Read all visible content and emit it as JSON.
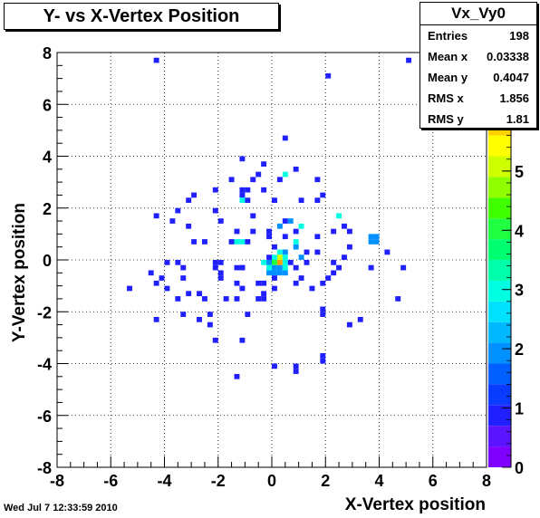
{
  "title": "Y- vs X-Vertex Position",
  "stats": {
    "name": "Vx_Vy0",
    "rows": [
      {
        "label": "Entries",
        "value": "198"
      },
      {
        "label": "Mean x",
        "value": "0.03338"
      },
      {
        "label": "Mean y",
        "value": "0.4047"
      },
      {
        "label": "RMS x",
        "value": "1.856"
      },
      {
        "label": "RMS y",
        "value": "1.81"
      }
    ]
  },
  "footer": {
    "timestamp": "Wed Jul  7 12:33:59 2010"
  },
  "chart_data": {
    "type": "heatmap",
    "title": "Y- vs X-Vertex Position",
    "xlabel": "X-Vertex position",
    "ylabel": "Y-Vertex position",
    "xlim": [
      -8,
      8
    ],
    "ylim": [
      -8,
      8
    ],
    "xticks": [
      -8,
      -6,
      -4,
      -2,
      0,
      2,
      4,
      6,
      8
    ],
    "yticks": [
      -8,
      -6,
      -4,
      -2,
      0,
      2,
      4,
      6,
      8
    ],
    "grid": true,
    "bin_width": 0.2,
    "zlim": [
      0,
      7
    ],
    "zticks": [
      0,
      1,
      2,
      3,
      4,
      5,
      6
    ],
    "colors": [
      "#7f00ff",
      "#5a14ff",
      "#2020ff",
      "#0a3cff",
      "#0060ff",
      "#0090ff",
      "#00b8ff",
      "#00e0ff",
      "#00ffe0",
      "#00ffaa",
      "#00ff70",
      "#20ff40",
      "#40ff00",
      "#90ff00",
      "#d0ff00",
      "#ffff00",
      "#ffd000",
      "#ffa000",
      "#ff7000",
      "#ff3000"
    ],
    "cells": [
      {
        "x": -4.3,
        "y": 7.7,
        "v": 1
      },
      {
        "x": 2.1,
        "y": 7.1,
        "v": 1
      },
      {
        "x": 5.1,
        "y": 7.7,
        "v": 1
      },
      {
        "x": 0.5,
        "y": 4.7,
        "v": 1
      },
      {
        "x": -1.1,
        "y": 3.9,
        "v": 1
      },
      {
        "x": -0.3,
        "y": 3.7,
        "v": 1
      },
      {
        "x": 0.9,
        "y": 3.5,
        "v": 1
      },
      {
        "x": -0.5,
        "y": 3.3,
        "v": 1
      },
      {
        "x": 0.5,
        "y": 3.3,
        "v": 3
      },
      {
        "x": -1.5,
        "y": 3.1,
        "v": 1
      },
      {
        "x": -0.7,
        "y": 3.1,
        "v": 1
      },
      {
        "x": 0.3,
        "y": 3.1,
        "v": 1
      },
      {
        "x": 1.7,
        "y": 3.1,
        "v": 1
      },
      {
        "x": -2.1,
        "y": 2.7,
        "v": 1
      },
      {
        "x": -1.1,
        "y": 2.7,
        "v": 1
      },
      {
        "x": -0.9,
        "y": 2.7,
        "v": 1
      },
      {
        "x": -0.3,
        "y": 2.7,
        "v": 1
      },
      {
        "x": -2.9,
        "y": 2.5,
        "v": 1
      },
      {
        "x": -1.1,
        "y": 2.5,
        "v": 1
      },
      {
        "x": 1.9,
        "y": 2.5,
        "v": 1
      },
      {
        "x": -3.1,
        "y": 2.3,
        "v": 1
      },
      {
        "x": -1.1,
        "y": 2.3,
        "v": 3
      },
      {
        "x": -0.9,
        "y": 2.3,
        "v": 1
      },
      {
        "x": 0.1,
        "y": 2.3,
        "v": 1
      },
      {
        "x": 1.1,
        "y": 2.3,
        "v": 1
      },
      {
        "x": 1.7,
        "y": 2.3,
        "v": 1
      },
      {
        "x": -3.5,
        "y": 1.9,
        "v": 1
      },
      {
        "x": -2.1,
        "y": 1.9,
        "v": 1
      },
      {
        "x": -0.7,
        "y": 1.7,
        "v": 1
      },
      {
        "x": 2.5,
        "y": 1.7,
        "v": 3
      },
      {
        "x": -3.7,
        "y": 1.5,
        "v": 1
      },
      {
        "x": -4.3,
        "y": 1.7,
        "v": 1
      },
      {
        "x": -1.9,
        "y": 1.5,
        "v": 1
      },
      {
        "x": 0.3,
        "y": 1.3,
        "v": 2
      },
      {
        "x": 0.5,
        "y": 1.5,
        "v": 1
      },
      {
        "x": 0.7,
        "y": 1.5,
        "v": 2
      },
      {
        "x": 1.1,
        "y": 1.3,
        "v": 3
      },
      {
        "x": 2.7,
        "y": 1.3,
        "v": 1
      },
      {
        "x": -3.1,
        "y": 1.3,
        "v": 1
      },
      {
        "x": -0.1,
        "y": 1.1,
        "v": 1
      },
      {
        "x": 0.9,
        "y": 1.1,
        "v": 1
      },
      {
        "x": 2.3,
        "y": 1.1,
        "v": 1
      },
      {
        "x": -1.3,
        "y": 1.1,
        "v": 1
      },
      {
        "x": -0.7,
        "y": 1.1,
        "v": 1
      },
      {
        "x": 2.9,
        "y": 1.1,
        "v": 1
      },
      {
        "x": -0.1,
        "y": 0.9,
        "v": 1
      },
      {
        "x": 0.5,
        "y": 0.9,
        "v": 1
      },
      {
        "x": 1.7,
        "y": 0.9,
        "v": 1
      },
      {
        "x": -1.5,
        "y": 0.7,
        "v": 1
      },
      {
        "x": -1.3,
        "y": 0.7,
        "v": 3
      },
      {
        "x": -1.1,
        "y": 0.7,
        "v": 3
      },
      {
        "x": -0.9,
        "y": 0.7,
        "v": 1
      },
      {
        "x": -2.9,
        "y": 0.7,
        "v": 1
      },
      {
        "x": -2.5,
        "y": 0.7,
        "v": 1
      },
      {
        "x": 0.9,
        "y": 0.7,
        "v": 3
      },
      {
        "x": 3.7,
        "y": 0.9,
        "v": 2
      },
      {
        "x": 3.9,
        "y": 0.9,
        "v": 2
      },
      {
        "x": 3.7,
        "y": 0.7,
        "v": 2
      },
      {
        "x": 3.9,
        "y": 0.7,
        "v": 2
      },
      {
        "x": 2.9,
        "y": 0.5,
        "v": 1
      },
      {
        "x": 0.1,
        "y": 0.5,
        "v": 1
      },
      {
        "x": 0.9,
        "y": 0.5,
        "v": 2
      },
      {
        "x": 0.3,
        "y": 0.3,
        "v": 3
      },
      {
        "x": 0.5,
        "y": 0.3,
        "v": 2
      },
      {
        "x": 1.3,
        "y": 0.3,
        "v": 1
      },
      {
        "x": 1.7,
        "y": 0.3,
        "v": 1
      },
      {
        "x": 4.3,
        "y": 0.3,
        "v": 1
      },
      {
        "x": -0.1,
        "y": 0.1,
        "v": 1
      },
      {
        "x": 0.1,
        "y": 0.1,
        "v": 3
      },
      {
        "x": 0.3,
        "y": 0.1,
        "v": 5
      },
      {
        "x": 0.5,
        "y": 0.1,
        "v": 3
      },
      {
        "x": 1.1,
        "y": 0.1,
        "v": 2
      },
      {
        "x": 2.7,
        "y": 0.1,
        "v": 1
      },
      {
        "x": -3.9,
        "y": -0.1,
        "v": 1
      },
      {
        "x": -3.5,
        "y": -0.1,
        "v": 1
      },
      {
        "x": -2.1,
        "y": -0.1,
        "v": 1
      },
      {
        "x": -1.9,
        "y": -0.1,
        "v": 1
      },
      {
        "x": -0.3,
        "y": -0.1,
        "v": 3
      },
      {
        "x": -0.1,
        "y": -0.1,
        "v": 2
      },
      {
        "x": 0.1,
        "y": -0.1,
        "v": 4
      },
      {
        "x": 0.3,
        "y": -0.1,
        "v": 6
      },
      {
        "x": 0.5,
        "y": -0.1,
        "v": 3
      },
      {
        "x": 0.7,
        "y": -0.1,
        "v": 1
      },
      {
        "x": 1.3,
        "y": -0.1,
        "v": 1
      },
      {
        "x": 2.3,
        "y": -0.1,
        "v": 1
      },
      {
        "x": -3.3,
        "y": -0.3,
        "v": 1
      },
      {
        "x": -2.1,
        "y": -0.3,
        "v": 1
      },
      {
        "x": -1.1,
        "y": -0.3,
        "v": 1
      },
      {
        "x": -1.3,
        "y": -0.3,
        "v": 1
      },
      {
        "x": -1.1,
        "y": -0.3,
        "v": 1
      },
      {
        "x": -0.1,
        "y": -0.3,
        "v": 3
      },
      {
        "x": 0.1,
        "y": -0.3,
        "v": 2
      },
      {
        "x": 0.3,
        "y": -0.3,
        "v": 2
      },
      {
        "x": 0.5,
        "y": -0.3,
        "v": 3
      },
      {
        "x": 0.9,
        "y": -0.3,
        "v": 1
      },
      {
        "x": 2.5,
        "y": -0.3,
        "v": 1
      },
      {
        "x": 3.7,
        "y": -0.3,
        "v": 1
      },
      {
        "x": 4.9,
        "y": -0.3,
        "v": 1
      },
      {
        "x": -4.5,
        "y": -0.5,
        "v": 1
      },
      {
        "x": -1.9,
        "y": -0.5,
        "v": 1
      },
      {
        "x": -0.1,
        "y": -0.5,
        "v": 2
      },
      {
        "x": 0.1,
        "y": -0.5,
        "v": 2
      },
      {
        "x": 0.3,
        "y": -0.5,
        "v": 2
      },
      {
        "x": 0.5,
        "y": -0.5,
        "v": 2
      },
      {
        "x": 2.3,
        "y": -0.5,
        "v": 1
      },
      {
        "x": -4.1,
        "y": -0.7,
        "v": 1
      },
      {
        "x": -3.3,
        "y": -0.7,
        "v": 1
      },
      {
        "x": -1.9,
        "y": -0.7,
        "v": 1
      },
      {
        "x": 1.1,
        "y": -0.7,
        "v": 1
      },
      {
        "x": 0.1,
        "y": -0.7,
        "v": 1
      },
      {
        "x": 2.1,
        "y": -0.7,
        "v": 1
      },
      {
        "x": -4.3,
        "y": -0.9,
        "v": 1
      },
      {
        "x": -1.3,
        "y": -0.9,
        "v": 1
      },
      {
        "x": -0.5,
        "y": -0.9,
        "v": 1
      },
      {
        "x": -0.3,
        "y": -0.9,
        "v": 1
      },
      {
        "x": 0.9,
        "y": -0.9,
        "v": 1
      },
      {
        "x": 1.9,
        "y": -0.9,
        "v": 1
      },
      {
        "x": -5.3,
        "y": -1.1,
        "v": 1
      },
      {
        "x": -3.9,
        "y": -1.1,
        "v": 1
      },
      {
        "x": -1.1,
        "y": -1.1,
        "v": 1
      },
      {
        "x": 0.1,
        "y": -1.1,
        "v": 1
      },
      {
        "x": -3.1,
        "y": -1.3,
        "v": 1
      },
      {
        "x": 1.5,
        "y": -1.1,
        "v": 1
      },
      {
        "x": -2.7,
        "y": -1.3,
        "v": 1
      },
      {
        "x": -0.3,
        "y": -1.3,
        "v": 1
      },
      {
        "x": -3.5,
        "y": -1.5,
        "v": 1
      },
      {
        "x": -2.5,
        "y": -1.5,
        "v": 1
      },
      {
        "x": -1.7,
        "y": -1.5,
        "v": 1
      },
      {
        "x": -1.3,
        "y": -1.5,
        "v": 1
      },
      {
        "x": -0.3,
        "y": -1.5,
        "v": 1
      },
      {
        "x": -0.5,
        "y": -1.5,
        "v": 1
      },
      {
        "x": 4.7,
        "y": -1.5,
        "v": 1
      },
      {
        "x": 1.9,
        "y": -1.9,
        "v": 1
      },
      {
        "x": -3.3,
        "y": -2.1,
        "v": 1
      },
      {
        "x": -2.3,
        "y": -2.1,
        "v": 1
      },
      {
        "x": -0.9,
        "y": -2.1,
        "v": 1
      },
      {
        "x": 1.9,
        "y": -2.1,
        "v": 1
      },
      {
        "x": -4.3,
        "y": -2.3,
        "v": 1
      },
      {
        "x": -2.7,
        "y": -2.3,
        "v": 1
      },
      {
        "x": 3.3,
        "y": -2.3,
        "v": 1
      },
      {
        "x": -2.3,
        "y": -2.5,
        "v": 1
      },
      {
        "x": 2.9,
        "y": -2.5,
        "v": 1
      },
      {
        "x": -2.1,
        "y": -3.1,
        "v": 1
      },
      {
        "x": -1.1,
        "y": -3.1,
        "v": 1
      },
      {
        "x": 1.9,
        "y": -3.7,
        "v": 1
      },
      {
        "x": 1.9,
        "y": -3.9,
        "v": 1
      },
      {
        "x": 0.1,
        "y": -4.1,
        "v": 1
      },
      {
        "x": 0.9,
        "y": -4.1,
        "v": 1
      },
      {
        "x": 0.9,
        "y": -4.3,
        "v": 1
      },
      {
        "x": -1.3,
        "y": -4.5,
        "v": 1
      }
    ]
  }
}
